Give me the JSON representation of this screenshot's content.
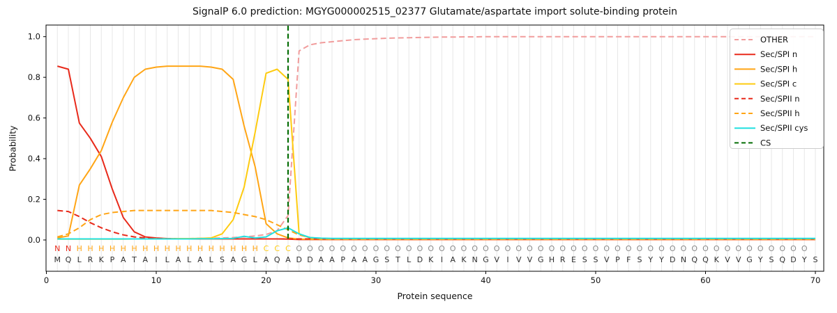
{
  "figure": {
    "kind": "SignalP 6.0 prediction plot"
  },
  "chart_data": {
    "type": "line",
    "title": "SignalP 6.0 prediction: MGYG000002515_02377 Glutamate/aspartate import solute-binding protein",
    "xlabel": "Protein sequence",
    "ylabel": "Probability",
    "x_ticks": [
      0,
      10,
      20,
      30,
      40,
      50,
      60,
      70
    ],
    "y_ticks": [
      "0.0",
      "0.2",
      "0.4",
      "0.6",
      "0.8",
      "1.0"
    ],
    "xlim": [
      0,
      70.8
    ],
    "ylim": [
      0,
      1.0
    ],
    "grid": "vertical gridline at every residue position",
    "legend_position": "upper right",
    "x_positions_note": "x = residue index 1..70",
    "series": [
      {
        "name": "OTHER",
        "color": "#f19c9c",
        "style": "dashed",
        "values": [
          0.005,
          0.005,
          0.005,
          0.005,
          0.005,
          0.005,
          0.005,
          0.005,
          0.005,
          0.005,
          0.006,
          0.006,
          0.007,
          0.008,
          0.009,
          0.01,
          0.012,
          0.015,
          0.02,
          0.027,
          0.045,
          0.12,
          0.93,
          0.96,
          0.97,
          0.975,
          0.98,
          0.985,
          0.988,
          0.99,
          0.992,
          0.994,
          0.995,
          0.996,
          0.997,
          0.998,
          0.998,
          0.999,
          0.999,
          1.0,
          1.0,
          1.0,
          1.0,
          1.0,
          1.0,
          1.0,
          1.0,
          1.0,
          1.0,
          1.0,
          1.0,
          1.0,
          1.0,
          1.0,
          1.0,
          1.0,
          1.0,
          1.0,
          1.0,
          1.0,
          1.0,
          1.0,
          1.0,
          1.0,
          1.0,
          1.0,
          1.0,
          1.0,
          1.0,
          1.0
        ]
      },
      {
        "name": "Sec/SPI n",
        "color": "#e8291a",
        "style": "solid",
        "values": [
          0.855,
          0.84,
          0.575,
          0.5,
          0.41,
          0.25,
          0.11,
          0.04,
          0.015,
          0.01,
          0.007,
          0.006,
          0.005,
          0.005,
          0.005,
          0.005,
          0.005,
          0.005,
          0.005,
          0.005,
          0.005,
          0.004,
          0.002,
          0.002,
          0.002,
          0.002,
          0.002,
          0.002,
          0.002,
          0.002,
          0.002,
          0.002,
          0.002,
          0.002,
          0.002,
          0.002,
          0.002,
          0.002,
          0.002,
          0.002,
          0.002,
          0.002,
          0.002,
          0.002,
          0.002,
          0.002,
          0.002,
          0.002,
          0.002,
          0.002,
          0.002,
          0.002,
          0.002,
          0.002,
          0.002,
          0.002,
          0.002,
          0.002,
          0.002,
          0.002,
          0.002,
          0.002,
          0.002,
          0.002,
          0.002,
          0.002,
          0.002,
          0.002,
          0.002,
          0.002
        ]
      },
      {
        "name": "Sec/SPI h",
        "color": "#ffa515",
        "style": "solid",
        "values": [
          0.01,
          0.02,
          0.27,
          0.35,
          0.44,
          0.58,
          0.7,
          0.8,
          0.84,
          0.85,
          0.855,
          0.855,
          0.855,
          0.855,
          0.85,
          0.84,
          0.79,
          0.56,
          0.36,
          0.08,
          0.03,
          0.01,
          0.004,
          0.003,
          0.003,
          0.003,
          0.003,
          0.003,
          0.003,
          0.003,
          0.003,
          0.003,
          0.003,
          0.003,
          0.003,
          0.003,
          0.003,
          0.003,
          0.003,
          0.003,
          0.003,
          0.003,
          0.003,
          0.003,
          0.003,
          0.003,
          0.003,
          0.003,
          0.003,
          0.003,
          0.003,
          0.003,
          0.003,
          0.003,
          0.003,
          0.003,
          0.003,
          0.003,
          0.003,
          0.003,
          0.003,
          0.003,
          0.003,
          0.003,
          0.003,
          0.003,
          0.003,
          0.003,
          0.003,
          0.003
        ]
      },
      {
        "name": "Sec/SPI c",
        "color": "#fecb10",
        "style": "solid",
        "values": [
          0.004,
          0.004,
          0.004,
          0.004,
          0.004,
          0.004,
          0.004,
          0.005,
          0.005,
          0.006,
          0.006,
          0.007,
          0.007,
          0.008,
          0.01,
          0.03,
          0.1,
          0.26,
          0.53,
          0.82,
          0.84,
          0.79,
          0.03,
          0.01,
          0.006,
          0.005,
          0.005,
          0.005,
          0.005,
          0.005,
          0.005,
          0.005,
          0.005,
          0.005,
          0.005,
          0.005,
          0.005,
          0.005,
          0.005,
          0.005,
          0.005,
          0.005,
          0.005,
          0.005,
          0.005,
          0.005,
          0.005,
          0.005,
          0.005,
          0.005,
          0.005,
          0.005,
          0.005,
          0.005,
          0.005,
          0.005,
          0.005,
          0.005,
          0.005,
          0.005,
          0.005,
          0.005,
          0.005,
          0.005,
          0.005,
          0.005,
          0.005,
          0.005,
          0.005,
          0.005
        ]
      },
      {
        "name": "Sec/SPII n",
        "color": "#e8291a",
        "style": "dashed",
        "values": [
          0.145,
          0.14,
          0.115,
          0.085,
          0.06,
          0.04,
          0.025,
          0.015,
          0.01,
          0.008,
          0.006,
          0.005,
          0.005,
          0.005,
          0.005,
          0.005,
          0.005,
          0.005,
          0.005,
          0.005,
          0.005,
          0.005,
          0.005,
          0.005,
          0.005,
          0.005,
          0.005,
          0.005,
          0.005,
          0.005,
          0.005,
          0.005,
          0.005,
          0.005,
          0.005,
          0.005,
          0.005,
          0.005,
          0.005,
          0.005,
          0.005,
          0.005,
          0.005,
          0.005,
          0.005,
          0.005,
          0.005,
          0.005,
          0.005,
          0.005,
          0.005,
          0.005,
          0.005,
          0.005,
          0.005,
          0.005,
          0.005,
          0.005,
          0.005,
          0.005,
          0.005,
          0.005,
          0.005,
          0.005,
          0.005,
          0.005,
          0.005,
          0.005,
          0.005,
          0.005
        ]
      },
      {
        "name": "Sec/SPII h",
        "color": "#ffa515",
        "style": "dashed",
        "values": [
          0.015,
          0.03,
          0.06,
          0.1,
          0.125,
          0.135,
          0.14,
          0.145,
          0.145,
          0.145,
          0.145,
          0.145,
          0.145,
          0.145,
          0.145,
          0.14,
          0.135,
          0.125,
          0.115,
          0.1,
          0.075,
          0.05,
          0.025,
          0.012,
          0.007,
          0.005,
          0.004,
          0.004,
          0.004,
          0.004,
          0.004,
          0.004,
          0.004,
          0.004,
          0.004,
          0.004,
          0.004,
          0.004,
          0.004,
          0.004,
          0.004,
          0.004,
          0.004,
          0.004,
          0.004,
          0.004,
          0.004,
          0.004,
          0.004,
          0.004,
          0.004,
          0.004,
          0.004,
          0.004,
          0.004,
          0.004,
          0.004,
          0.004,
          0.004,
          0.004,
          0.004,
          0.004,
          0.004,
          0.004,
          0.004,
          0.004,
          0.004,
          0.004,
          0.004,
          0.004
        ]
      },
      {
        "name": "Sec/SPII cys",
        "color": "#21e0e0",
        "style": "solid",
        "values": [
          0.005,
          0.005,
          0.005,
          0.005,
          0.005,
          0.005,
          0.005,
          0.005,
          0.005,
          0.005,
          0.005,
          0.005,
          0.005,
          0.006,
          0.006,
          0.007,
          0.008,
          0.018,
          0.01,
          0.015,
          0.045,
          0.06,
          0.03,
          0.012,
          0.009,
          0.008,
          0.008,
          0.008,
          0.008,
          0.008,
          0.008,
          0.008,
          0.008,
          0.008,
          0.008,
          0.008,
          0.008,
          0.008,
          0.008,
          0.008,
          0.008,
          0.008,
          0.008,
          0.008,
          0.008,
          0.008,
          0.008,
          0.008,
          0.008,
          0.008,
          0.008,
          0.008,
          0.008,
          0.008,
          0.008,
          0.008,
          0.008,
          0.008,
          0.008,
          0.008,
          0.008,
          0.008,
          0.008,
          0.008,
          0.008,
          0.008,
          0.008,
          0.008,
          0.008,
          0.008
        ]
      }
    ],
    "cs_line": {
      "name": "CS",
      "position": 22,
      "color": "#066e06",
      "style": "dashed vertical"
    },
    "legend_labels": [
      "OTHER",
      "Sec/SPI n",
      "Sec/SPI h",
      "Sec/SPI c",
      "Sec/SPII n",
      "Sec/SPII h",
      "Sec/SPII cys",
      "CS"
    ],
    "sequence": "MQLRKPATAILALALSAGLAQADDAAPAAGSTLDKIAKNGVIVVGHRESSVPFSYYDNQQKVVGYSQDYS",
    "region_labels": "NNHHHHHHHHHHHHHHHHHCCCOOOOOOOOOOOOOOOOOOOOOOOOOOOOOOOOOOOOOOOOOOOOOOO",
    "region_colors": {
      "N": "#e8291a",
      "H": "#ffa515",
      "C": "#fecb10",
      "O": "#8a8a8a"
    },
    "sequence_color": "#2f2f2f"
  }
}
